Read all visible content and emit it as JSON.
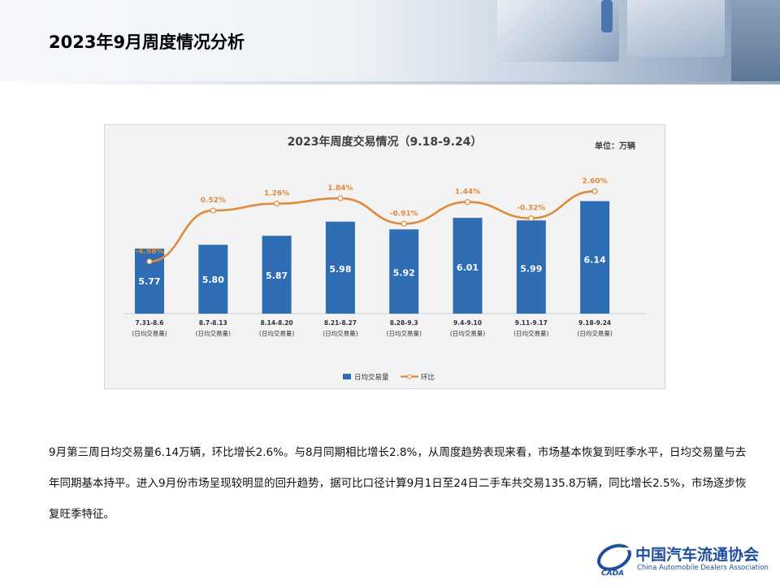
{
  "page": {
    "title": "2023年9月周度情况分析",
    "paragraph": "9月第三周日均交易量6.14万辆，环比增长2.6%。与8月同期相比增长2.8%，从周度趋势表现来看，市场基本恢复到旺季水平，日均交易量与去年同期基本持平。进入9月份市场呈现较明显的回升趋势，据可比口径计算9月1日至24日二手车共交易135.8万辆，同比增长2.5%，市场逐步恢复旺季特征。"
  },
  "logo": {
    "name_cn": "中国汽车流通协会",
    "name_en": "China Automobile Dealers Association",
    "mark_text": "CADA"
  },
  "colors": {
    "bar": "#2e6db4",
    "line": "#e08a3c",
    "bar_label": "#ffffff",
    "pct_label": "#e08a3c"
  },
  "chart_data": {
    "type": "bar",
    "title": "2023年周度交易情况（9.18-9.24）",
    "unit": "单位：万辆",
    "categories": [
      "7.31-8.6",
      "8.7-8.13",
      "8.14-8.20",
      "8.21-8.27",
      "8.28-9.3",
      "9.4-9.10",
      "9.11-9.17",
      "9.18-9.24"
    ],
    "category_sub": "(日均交易量)",
    "series": [
      {
        "name": "日均交易量",
        "type": "bar",
        "values": [
          5.77,
          5.8,
          5.87,
          5.98,
          5.92,
          6.01,
          5.99,
          6.14
        ]
      },
      {
        "name": "环比",
        "type": "line",
        "values": [
          -4.98,
          0.52,
          1.26,
          1.84,
          -0.91,
          1.44,
          -0.32,
          2.6
        ],
        "labels": [
          "-4.98%",
          "0.52%",
          "1.26%",
          "1.84%",
          "-0.91%",
          "1.44%",
          "-0.32%",
          "2.60%"
        ]
      }
    ],
    "legend": [
      "日均交易量",
      "环比"
    ],
    "legend_position": "bottom"
  }
}
